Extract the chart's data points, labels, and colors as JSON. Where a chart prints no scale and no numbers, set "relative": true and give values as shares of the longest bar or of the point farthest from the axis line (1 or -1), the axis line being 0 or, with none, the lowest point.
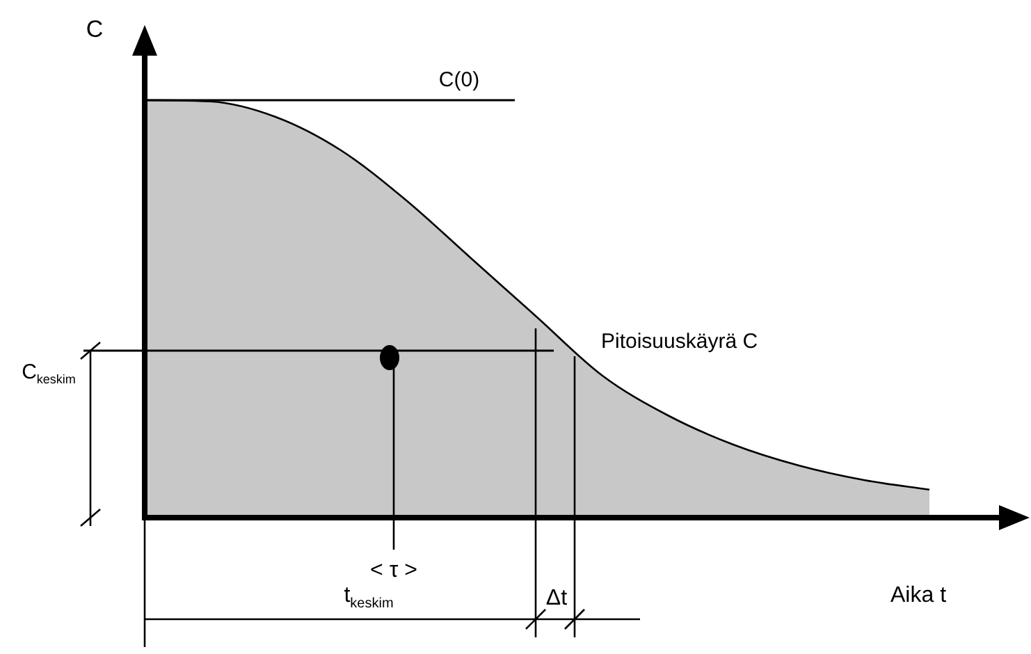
{
  "chart_data": {
    "type": "area",
    "relative": true,
    "xlabel": "Aika t",
    "ylabel": "C",
    "categories": [
      null,
      null,
      null,
      null,
      null,
      null,
      null,
      null,
      null,
      null,
      null,
      null,
      null
    ],
    "series": [
      {
        "name": "Pitoisuuskäyrä C",
        "color": "#c8c8c8",
        "values": [
          1.0,
          0.997,
          0.96,
          0.88,
          0.76,
          0.62,
          0.48,
          0.34,
          0.245,
          0.175,
          0.125,
          0.09,
          0.067
        ]
      }
    ],
    "ref_lines": [
      {
        "axis": "y",
        "value": 1,
        "label": "C(0)"
      },
      {
        "axis": "y",
        "value": 0.4,
        "label": "C$_{keskim}$"
      }
    ],
    "annotations": [
      "< τ >",
      "t$_{keskim}$",
      "Δt"
    ]
  }
}
